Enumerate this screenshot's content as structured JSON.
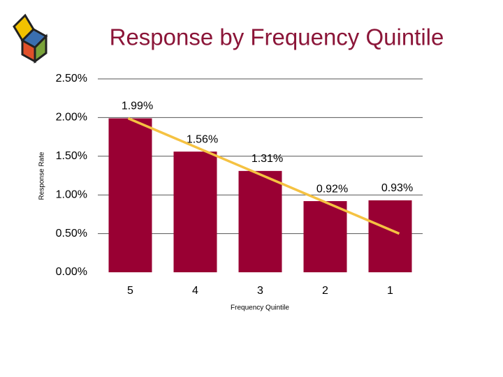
{
  "chart_data": {
    "type": "bar",
    "title": "Response by Frequency Quintile",
    "x_label": "Frequency Quintile",
    "y_label": "Response Rate",
    "categories": [
      "5",
      "4",
      "3",
      "2",
      "1"
    ],
    "values": [
      1.99,
      1.56,
      1.31,
      0.92,
      0.93
    ],
    "value_labels": [
      "1.99%",
      "1.56%",
      "1.31%",
      "0.92%",
      "0.93%"
    ],
    "color": "#990033",
    "ylim": [
      0,
      2.5
    ],
    "yticks": [
      {
        "value": 0,
        "label": "0.00%"
      },
      {
        "value": 0.5,
        "label": "0.50%"
      },
      {
        "value": 1,
        "label": "1.00%"
      },
      {
        "value": 1.5,
        "label": "1.50%"
      },
      {
        "value": 2,
        "label": "2.00%"
      },
      {
        "value": 2.5,
        "label": "2.50%"
      }
    ],
    "grid": true,
    "trend": {
      "start": 1.99,
      "end": 0.5,
      "color": "#f5c242"
    }
  }
}
